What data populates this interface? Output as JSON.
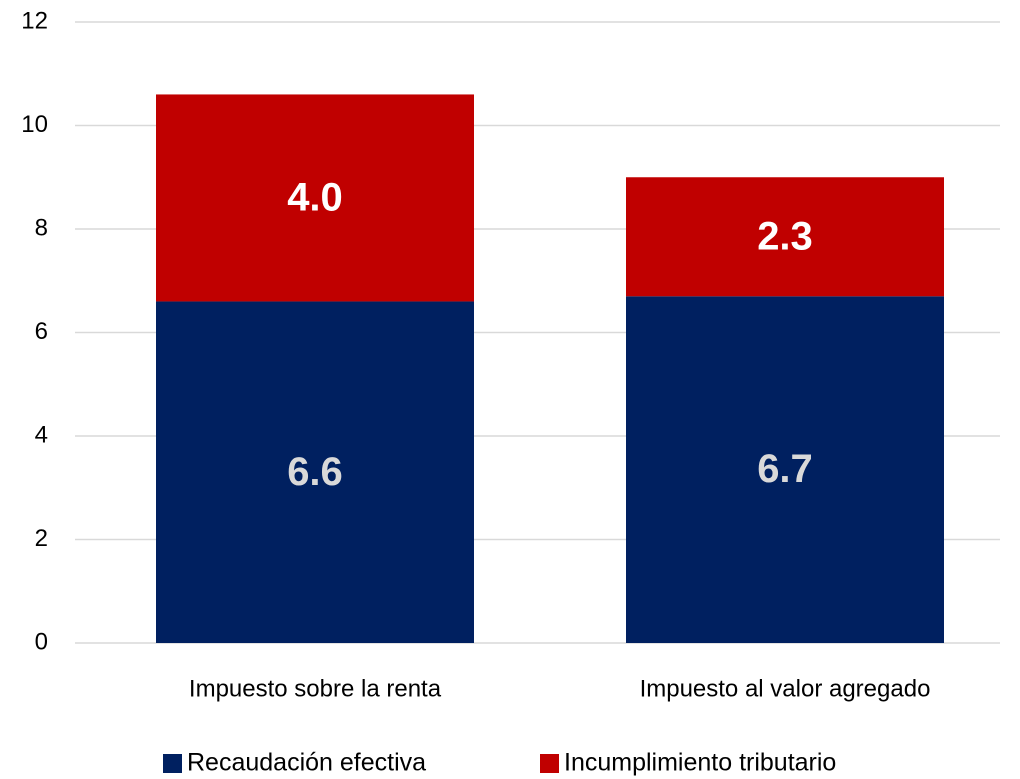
{
  "chart_data": {
    "type": "bar",
    "stacked": true,
    "categories": [
      "Impuesto sobre la renta",
      "Impuesto al valor agregado"
    ],
    "series": [
      {
        "name": "Recaudación efectiva",
        "color": "#002060",
        "values": [
          6.6,
          6.7
        ],
        "value_labels": [
          "6.6",
          "6.7"
        ]
      },
      {
        "name": "Incumplimiento tributario",
        "color": "#c00000",
        "values": [
          4.0,
          2.3
        ],
        "value_labels": [
          "4.0",
          "2.3"
        ]
      }
    ],
    "ylim": [
      0,
      12
    ],
    "yticks": [
      0,
      2,
      4,
      6,
      8,
      10,
      12
    ],
    "grid": true,
    "legend": "bottom"
  }
}
